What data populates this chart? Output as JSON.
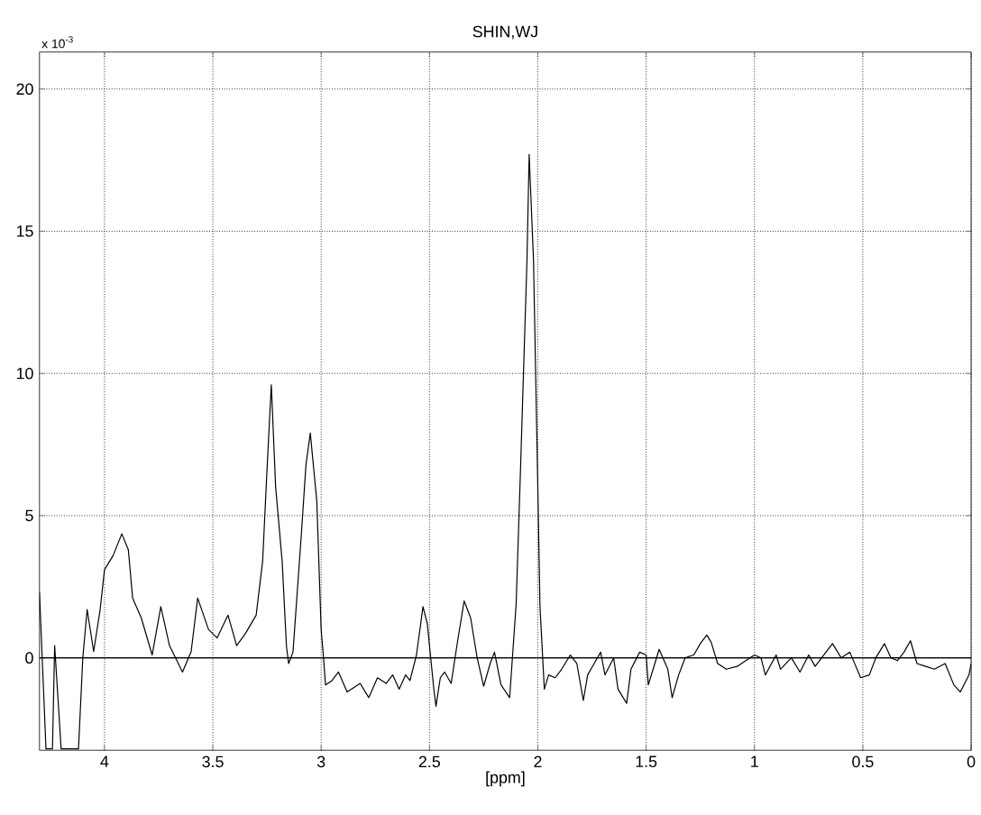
{
  "chart_data": {
    "type": "line",
    "title": "SHIN,WJ",
    "xlabel": "[ppm]",
    "annotations": [
      "x 10$^{-3}$"
    ],
    "xlim": [
      4.3,
      0
    ],
    "ylim": [
      -3.25,
      21.3
    ],
    "xticks": [
      4,
      3.5,
      3,
      2.5,
      2,
      1.5,
      1,
      0.5,
      0
    ],
    "yticks": [
      0,
      5,
      10,
      15,
      20
    ],
    "grid": true,
    "marker": "none",
    "line_style": "solid",
    "ref_lines": [
      {
        "axis": "y",
        "value": 0,
        "color": "#000000",
        "line_style": "solid"
      }
    ],
    "series": [
      {
        "color": "#000000",
        "x": [
          4.3,
          4.27,
          4.24,
          4.23,
          4.2,
          4.12,
          4.1,
          4.08,
          4.05,
          4.02,
          4.0,
          3.96,
          3.92,
          3.89,
          3.87,
          3.83,
          3.78,
          3.74,
          3.7,
          3.64,
          3.6,
          3.57,
          3.52,
          3.48,
          3.43,
          3.39,
          3.35,
          3.3,
          3.27,
          3.25,
          3.23,
          3.21,
          3.18,
          3.16,
          3.15,
          3.13,
          3.09,
          3.07,
          3.05,
          3.02,
          3.0,
          2.99,
          2.98,
          2.95,
          2.92,
          2.88,
          2.82,
          2.78,
          2.74,
          2.7,
          2.67,
          2.64,
          2.61,
          2.59,
          2.56,
          2.53,
          2.51,
          2.48,
          2.47,
          2.45,
          2.43,
          2.4,
          2.37,
          2.34,
          2.31,
          2.28,
          2.25,
          2.22,
          2.2,
          2.17,
          2.13,
          2.1,
          2.08,
          2.05,
          2.04,
          2.02,
          2.0,
          1.99,
          1.97,
          1.95,
          1.92,
          1.89,
          1.85,
          1.82,
          1.79,
          1.77,
          1.74,
          1.71,
          1.69,
          1.65,
          1.63,
          1.59,
          1.57,
          1.53,
          1.5,
          1.49,
          1.46,
          1.44,
          1.4,
          1.38,
          1.35,
          1.32,
          1.28,
          1.25,
          1.22,
          1.2,
          1.17,
          1.13,
          1.08,
          1.04,
          1.0,
          0.97,
          0.95,
          0.9,
          0.88,
          0.83,
          0.79,
          0.75,
          0.72,
          0.68,
          0.64,
          0.6,
          0.56,
          0.51,
          0.47,
          0.44,
          0.4,
          0.37,
          0.34,
          0.31,
          0.28,
          0.25,
          0.21,
          0.17,
          0.12,
          0.08,
          0.05,
          0.01,
          0.0
        ],
        "values": [
          2.3,
          -3.2,
          -3.2,
          0.43,
          -3.2,
          -3.2,
          0.0,
          1.7,
          0.22,
          1.7,
          3.1,
          3.6,
          4.36,
          3.8,
          2.1,
          1.4,
          0.1,
          1.8,
          0.43,
          -0.5,
          0.22,
          2.1,
          1.0,
          0.7,
          1.5,
          0.43,
          0.85,
          1.5,
          3.4,
          6.6,
          9.6,
          6.0,
          3.4,
          0.4,
          -0.2,
          0.2,
          4.5,
          6.8,
          7.9,
          5.5,
          1.0,
          0.1,
          -0.95,
          -0.8,
          -0.5,
          -1.2,
          -0.9,
          -1.4,
          -0.7,
          -0.9,
          -0.6,
          -1.1,
          -0.6,
          -0.8,
          0.1,
          1.8,
          1.2,
          -1.1,
          -1.7,
          -0.7,
          -0.5,
          -0.9,
          0.6,
          2.0,
          1.4,
          0.0,
          -1.0,
          -0.2,
          0.2,
          -0.95,
          -1.4,
          1.9,
          6.6,
          14,
          17.7,
          14,
          6,
          1.8,
          -1.1,
          -0.6,
          -0.7,
          -0.4,
          0.1,
          -0.2,
          -1.5,
          -0.6,
          -0.2,
          0.2,
          -0.6,
          0.0,
          -1.1,
          -1.6,
          -0.4,
          0.2,
          0.1,
          -0.95,
          -0.2,
          0.3,
          -0.4,
          -1.4,
          -0.6,
          0.0,
          0.1,
          0.5,
          0.8,
          0.55,
          -0.2,
          -0.4,
          -0.3,
          -0.1,
          0.1,
          0.0,
          -0.6,
          0.1,
          -0.4,
          0.0,
          -0.5,
          0.1,
          -0.3,
          0.1,
          0.5,
          0.0,
          0.2,
          -0.7,
          -0.6,
          0.0,
          0.5,
          0.0,
          -0.1,
          0.2,
          0.6,
          -0.2,
          -0.3,
          -0.4,
          -0.2,
          -0.95,
          -1.2,
          -0.6,
          -0.2
        ]
      }
    ]
  }
}
